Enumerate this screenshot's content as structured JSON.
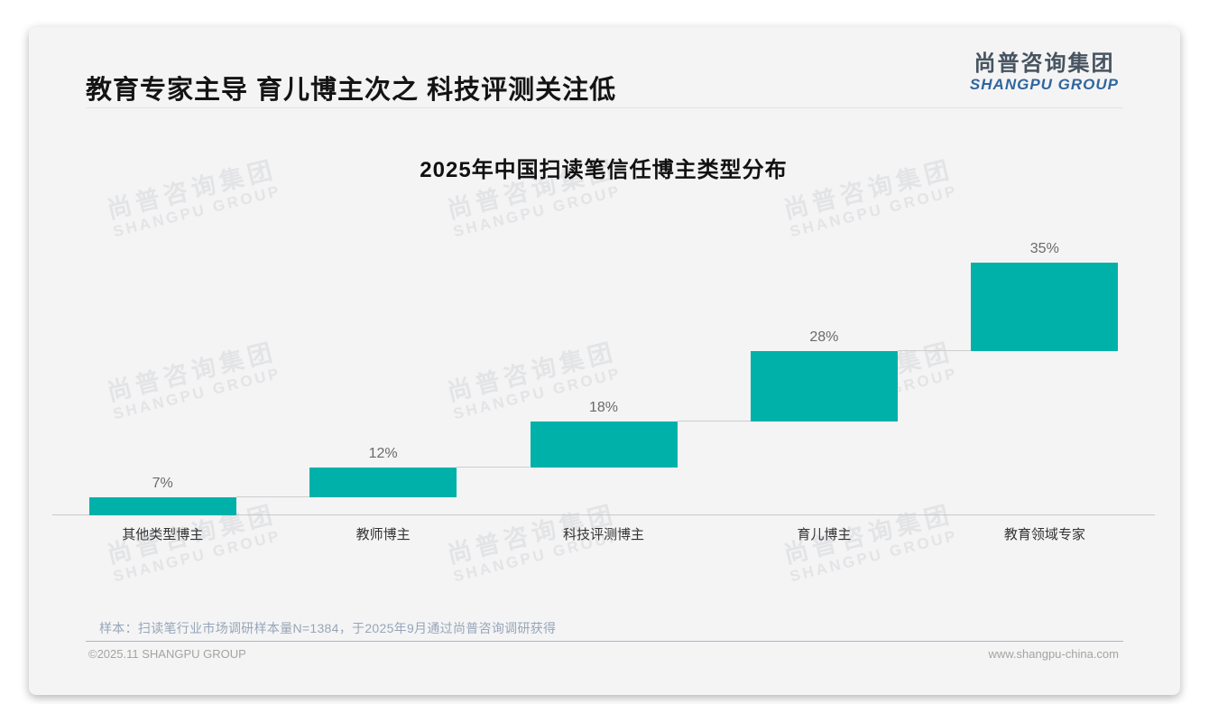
{
  "header": {
    "title": "教育专家主导 育儿博主次之 科技评测关注低",
    "logo": {
      "cn": "尚普咨询集团",
      "en": "SHANGPU GROUP"
    }
  },
  "chart_data": {
    "type": "bar",
    "variant": "stepped-waterfall",
    "title": "2025年中国扫读笔信任博主类型分布",
    "categories": [
      "其他类型博主",
      "教师博主",
      "科技评测博主",
      "育儿博主",
      "教育领域专家"
    ],
    "values": [
      7,
      12,
      18,
      28,
      35
    ],
    "labels": [
      "7%",
      "12%",
      "18%",
      "28%",
      "35%"
    ],
    "unit": "%",
    "ylim": [
      0,
      100
    ],
    "grid": "off",
    "legend": "none",
    "bar_color": "#00b1a9",
    "connector_color": "#cdcdcd",
    "axis_color": "#c9c9c9"
  },
  "watermark": {
    "cn": "尚普咨询集团",
    "en": "SHANGPU GROUP"
  },
  "footnote": "样本：扫读笔行业市场调研样本量N=1384，于2025年9月通过尚普咨询调研获得",
  "footer": {
    "left": "©2025.11 SHANGPU GROUP",
    "right": "www.shangpu-china.com"
  }
}
